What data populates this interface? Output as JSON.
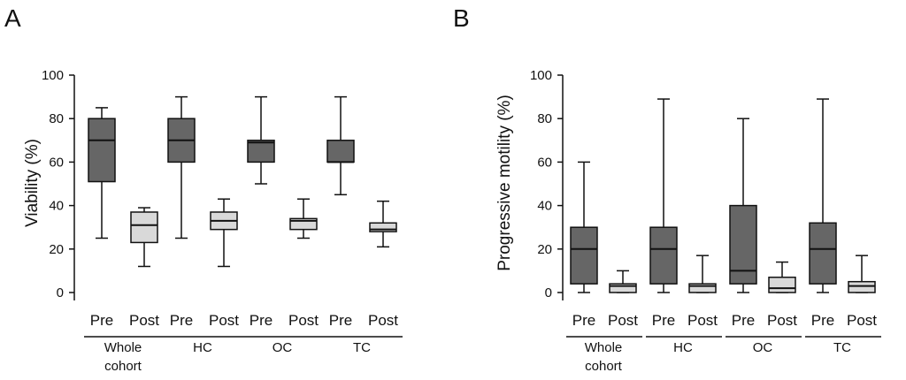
{
  "chart_data": [
    {
      "panel_label": "A",
      "type": "box",
      "ylabel": "Viability (%)",
      "ylim": [
        0,
        100
      ],
      "yticks": [
        "0",
        "20",
        "40",
        "60",
        "80",
        "100"
      ],
      "boxes": [
        {
          "label": "Pre",
          "group": "Whole cohort",
          "min": 25,
          "q1": 51,
          "median": 70,
          "q3": 80,
          "max": 85,
          "fill": "#666666"
        },
        {
          "label": "Post",
          "group": "Whole cohort",
          "min": 12,
          "q1": 23,
          "median": 31,
          "q3": 37,
          "max": 39,
          "fill": "#d9d9d9"
        },
        {
          "label": "Pre",
          "group": "HC",
          "min": 25,
          "q1": 60,
          "median": 70,
          "q3": 80,
          "max": 90,
          "fill": "#666666"
        },
        {
          "label": "Post",
          "group": "HC",
          "min": 12,
          "q1": 29,
          "median": 33,
          "q3": 37,
          "max": 43,
          "fill": "#d9d9d9"
        },
        {
          "label": "Pre",
          "group": "OC",
          "min": 50,
          "q1": 60,
          "median": 69,
          "q3": 70,
          "max": 90,
          "fill": "#666666"
        },
        {
          "label": "Post",
          "group": "OC",
          "min": 25,
          "q1": 29,
          "median": 33,
          "q3": 34,
          "max": 43,
          "fill": "#d9d9d9"
        },
        {
          "label": "Pre",
          "group": "TC",
          "min": 45,
          "q1": 60,
          "median": 60,
          "q3": 70,
          "max": 90,
          "fill": "#666666"
        },
        {
          "label": "Post",
          "group": "TC",
          "min": 21,
          "q1": 28,
          "median": 29,
          "q3": 32,
          "max": 42,
          "fill": "#d9d9d9"
        }
      ],
      "groups": [
        {
          "line1": "Whole",
          "line2": "cohort"
        },
        {
          "line1": "HC",
          "line2": ""
        },
        {
          "line1": "OC",
          "line2": ""
        },
        {
          "line1": "TC",
          "line2": ""
        }
      ]
    },
    {
      "panel_label": "B",
      "type": "box",
      "ylabel": "Progressive motility (%)",
      "ylim": [
        0,
        100
      ],
      "yticks": [
        "0",
        "20",
        "40",
        "60",
        "80",
        "100"
      ],
      "boxes": [
        {
          "label": "Pre",
          "group": "Whole cohort",
          "min": 0,
          "q1": 4,
          "median": 20,
          "q3": 30,
          "max": 60,
          "fill": "#666666"
        },
        {
          "label": "Post",
          "group": "Whole cohort",
          "min": 0,
          "q1": 0,
          "median": 3,
          "q3": 4,
          "max": 10,
          "fill": "#d9d9d9"
        },
        {
          "label": "Pre",
          "group": "HC",
          "min": 0,
          "q1": 4,
          "median": 20,
          "q3": 30,
          "max": 89,
          "fill": "#666666"
        },
        {
          "label": "Post",
          "group": "HC",
          "min": 0,
          "q1": 0,
          "median": 3,
          "q3": 4,
          "max": 17,
          "fill": "#d9d9d9"
        },
        {
          "label": "Pre",
          "group": "OC",
          "min": 0,
          "q1": 4,
          "median": 10,
          "q3": 40,
          "max": 80,
          "fill": "#666666"
        },
        {
          "label": "Post",
          "group": "OC",
          "min": 0,
          "q1": 0,
          "median": 2,
          "q3": 7,
          "max": 14,
          "fill": "#d9d9d9"
        },
        {
          "label": "Pre",
          "group": "TC",
          "min": 0,
          "q1": 4,
          "median": 20,
          "q3": 32,
          "max": 89,
          "fill": "#666666"
        },
        {
          "label": "Post",
          "group": "TC",
          "min": 0,
          "q1": 0,
          "median": 3,
          "q3": 5,
          "max": 17,
          "fill": "#d9d9d9"
        }
      ],
      "groups": [
        {
          "line1": "Whole",
          "line2": "cohort"
        },
        {
          "line1": "HC",
          "line2": ""
        },
        {
          "line1": "OC",
          "line2": ""
        },
        {
          "line1": "TC",
          "line2": ""
        }
      ]
    }
  ]
}
